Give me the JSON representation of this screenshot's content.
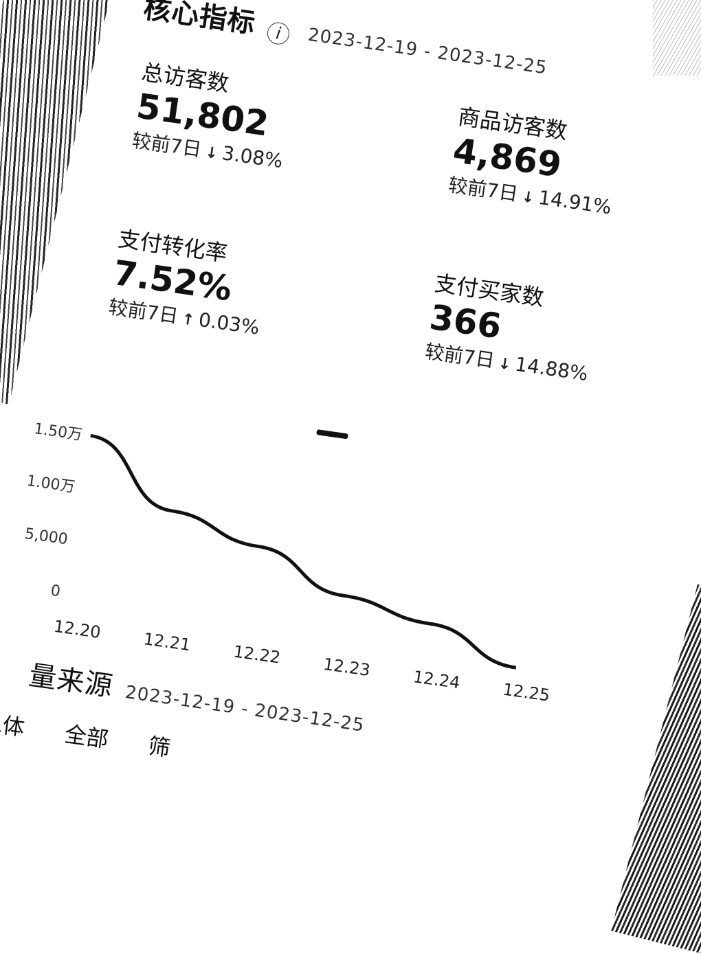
{
  "core": {
    "title": "核心指标",
    "info_icon": "i",
    "date_range": "2023-12-19 - 2023-12-25"
  },
  "metrics": [
    {
      "label": "总访客数",
      "value": "51,802",
      "compare_label": "较前7日",
      "direction": "down",
      "change": "3.08%"
    },
    {
      "label": "商品访客数",
      "value": "4,869",
      "compare_label": "较前7日",
      "direction": "down",
      "change": "14.91%"
    },
    {
      "label": "支付转化率",
      "value": "7.52%",
      "compare_label": "较前7日",
      "direction": "up",
      "change": "0.03%"
    },
    {
      "label": "支付买家数",
      "value": "366",
      "compare_label": "较前7日",
      "direction": "down",
      "change": "14.88%"
    }
  ],
  "chart_data": {
    "type": "line",
    "x": [
      "12.20",
      "12.21",
      "12.22",
      "12.23",
      "12.24",
      "12.25"
    ],
    "y_ticks": [
      "1.50万",
      "1.00万",
      "5,000",
      "0"
    ],
    "ylim": [
      0,
      15000
    ],
    "series": [
      {
        "values": [
          15000,
          9000,
          6800,
          3300,
          1800,
          -1200
        ]
      }
    ],
    "grid": false
  },
  "traffic": {
    "title": "量来源",
    "date_range": "2023-12-19 - 2023-12-25",
    "row_label": "总体",
    "tab_all": "全部",
    "tab_partial": "筛"
  }
}
